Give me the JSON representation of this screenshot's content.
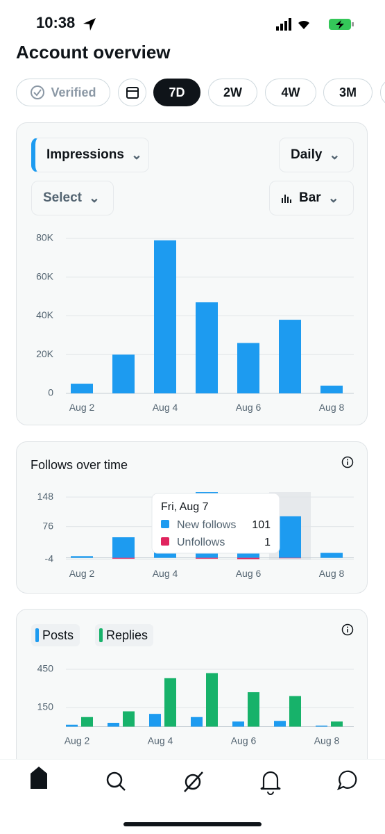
{
  "status_bar": {
    "time": "10:38"
  },
  "header": {
    "title": "Account overview"
  },
  "filters": [
    "Verified",
    "7D",
    "2W",
    "4W",
    "3M"
  ],
  "impressions_card": {
    "metric": "Impressions",
    "interval": "Daily",
    "select": "Select",
    "chart_style": "Bar",
    "chart_data": {
      "type": "bar",
      "categories": [
        "Aug 2",
        null,
        "Aug 4",
        null,
        "Aug 6",
        null,
        "Aug 8"
      ],
      "values": [
        5000,
        20000,
        79000,
        47000,
        26000,
        38000,
        4000
      ],
      "color": "#1d9bf0",
      "ylim": [
        0,
        80000
      ],
      "yticks": [
        0,
        {
          "value": 20000,
          "label": "20K"
        },
        {
          "value": 40000,
          "label": "40K"
        },
        {
          "value": 60000,
          "label": "60K"
        },
        {
          "value": 80000,
          "label": "80K"
        }
      ],
      "grid": true
    }
  },
  "follows_card": {
    "title": "Follows over time",
    "chart_data": {
      "type": "bar",
      "categories": [
        "Aug 2",
        null,
        "Aug 4",
        null,
        "Aug 6",
        null,
        "Aug 8"
      ],
      "series": [
        {
          "name": "New follows",
          "color": "#1d9bf0",
          "values": [
            4,
            50,
            20,
            160,
            20,
            101,
            12
          ]
        },
        {
          "name": "Unfollows",
          "color": "#e0245e",
          "values": [
            0,
            2,
            0,
            2,
            3,
            1,
            0
          ]
        }
      ],
      "ylim": [
        -4,
        160
      ],
      "yticks": [
        -4,
        76,
        148
      ],
      "grid": true,
      "tooltip_title": "Fri, Aug 7"
    }
  },
  "engagement_card": {
    "chart_data": {
      "type": "grouped-bar",
      "categories": [
        "Aug 2",
        null,
        "Aug 4",
        null,
        "Aug 6",
        null,
        "Aug 8"
      ],
      "series": [
        {
          "name": "Posts",
          "color": "#1d9bf0",
          "values": [
            15,
            30,
            100,
            75,
            40,
            45,
            8
          ]
        },
        {
          "name": "Replies",
          "color": "#17b26a",
          "values": [
            75,
            120,
            380,
            420,
            270,
            240,
            40
          ]
        }
      ],
      "ylim": [
        0,
        500
      ],
      "yticks": [
        150,
        450
      ],
      "grid": true
    }
  }
}
